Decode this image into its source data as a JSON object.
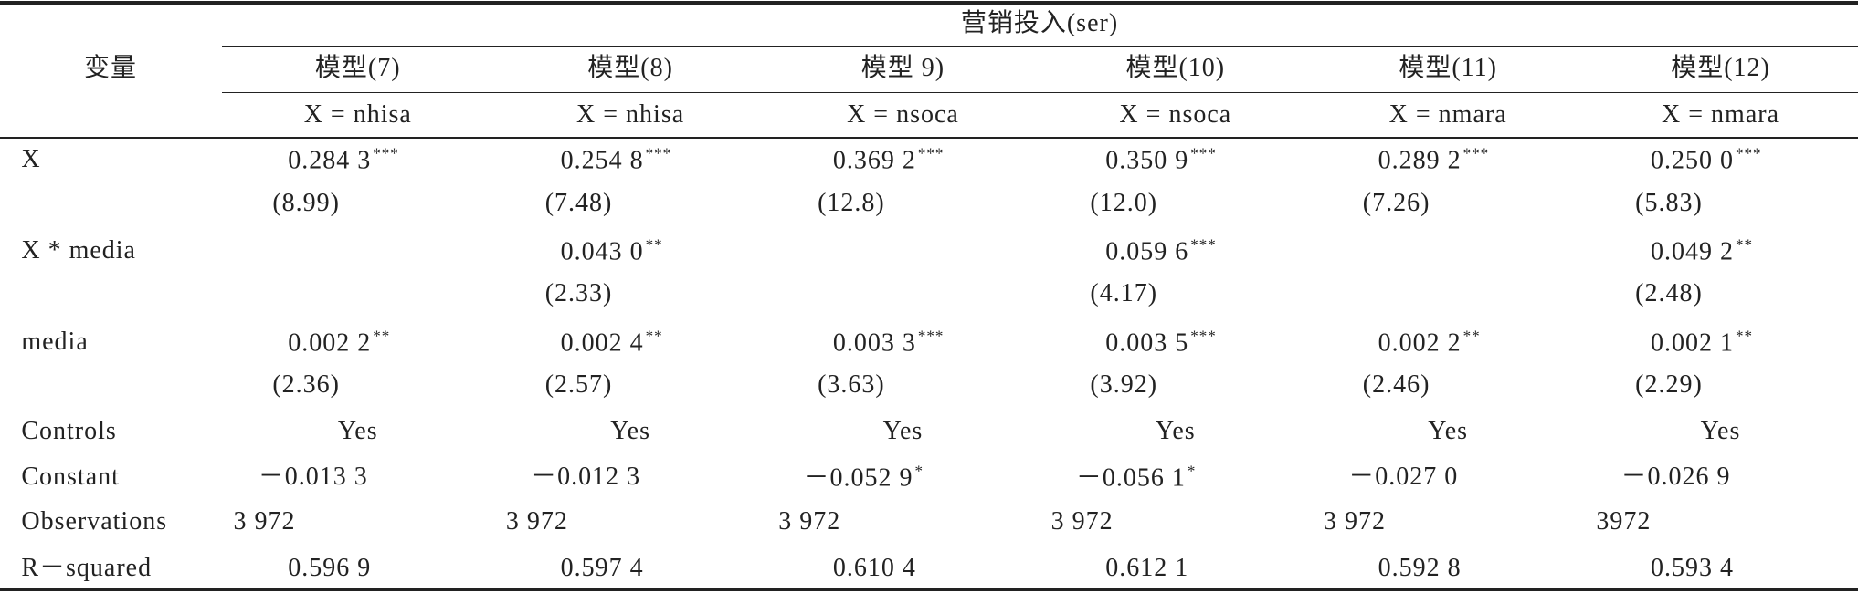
{
  "table": {
    "header": {
      "variable": "变量",
      "group": "营销投入(ser)",
      "models": [
        "模型(7)",
        "模型(8)",
        "模型 9)",
        "模型(10)",
        "模型(11)",
        "模型(12)"
      ],
      "x_defs": [
        "X = nhisa",
        "X = nhisa",
        "X = nsoca",
        "X = nsoca",
        "X = nmara",
        "X = nmara"
      ]
    },
    "rows": [
      {
        "label": "X",
        "cells": [
          {
            "value": "0.284 3",
            "stars": "***"
          },
          {
            "value": "0.254 8",
            "stars": "***"
          },
          {
            "value": "0.369 2",
            "stars": "***"
          },
          {
            "value": "0.350 9",
            "stars": "***"
          },
          {
            "value": "0.289 2",
            "stars": "***"
          },
          {
            "value": "0.250 0",
            "stars": "***"
          }
        ]
      },
      {
        "cells": [
          "(8.99)",
          "(7.48)",
          "(12.8)",
          "(12.0)",
          "(7.26)",
          "(5.83)"
        ]
      },
      {
        "label": "X * media",
        "cells": [
          null,
          {
            "value": "0.043 0",
            "stars": "**"
          },
          null,
          {
            "value": "0.059 6",
            "stars": "***"
          },
          null,
          {
            "value": "0.049 2",
            "stars": "**"
          }
        ]
      },
      {
        "cells": [
          null,
          "(2.33)",
          null,
          "(4.17)",
          null,
          "(2.48)"
        ]
      },
      {
        "label": "media",
        "cells": [
          {
            "value": "0.002 2",
            "stars": "**"
          },
          {
            "value": "0.002 4",
            "stars": "**"
          },
          {
            "value": "0.003 3",
            "stars": "***"
          },
          {
            "value": "0.003 5",
            "stars": "***"
          },
          {
            "value": "0.002 2",
            "stars": "**"
          },
          {
            "value": "0.002 1",
            "stars": "**"
          }
        ]
      },
      {
        "cells": [
          "(2.36)",
          "(2.57)",
          "(3.63)",
          "(3.92)",
          "(2.46)",
          "(2.29)"
        ]
      },
      {
        "label": "Controls",
        "cells": [
          "Yes",
          "Yes",
          "Yes",
          "Yes",
          "Yes",
          "Yes"
        ]
      },
      {
        "label": "Constant",
        "cells": [
          "－0.013 3",
          "－0.012 3",
          {
            "value": "－0.052 9",
            "stars": "*"
          },
          {
            "value": "－0.056 1",
            "stars": "*"
          },
          "－0.027 0",
          "－0.026 9"
        ]
      },
      {
        "label": "Observations",
        "cells": [
          "3 972",
          "3 972",
          "3 972",
          "3 972",
          "3 972",
          "3972"
        ]
      },
      {
        "label": "R－squared",
        "cells": [
          "0.596 9",
          "0.597 4",
          "0.610 4",
          "0.612 1",
          "0.592 8",
          "0.593 4"
        ]
      }
    ]
  }
}
